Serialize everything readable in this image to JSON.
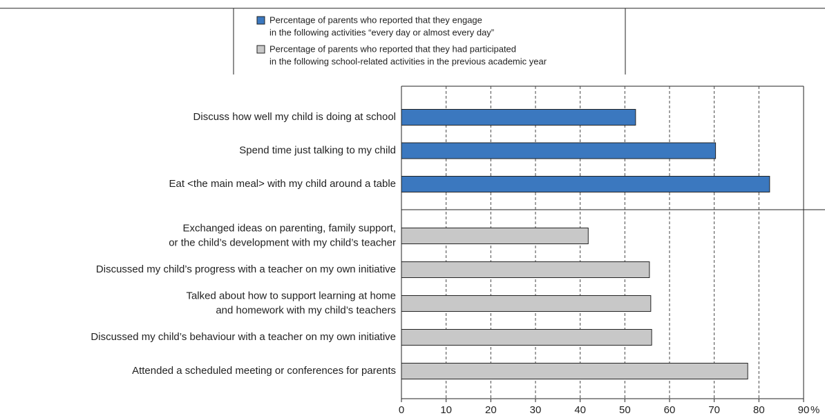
{
  "chart_data": {
    "type": "bar",
    "orientation": "horizontal",
    "categories": [
      [
        "Discuss how well my child is doing at school"
      ],
      [
        "Spend time just talking to my child"
      ],
      [
        "Eat <the main meal> with my child around a table"
      ],
      [
        "Exchanged ideas on parenting, family support,",
        "or the child’s development with my child’s teacher"
      ],
      [
        "Discussed my child’s progress with a teacher on my own initiative"
      ],
      [
        "Talked about how to support learning at home",
        "and homework with my child’s teachers"
      ],
      [
        "Discussed my child’s behaviour with a teacher on my own initiative"
      ],
      [
        "Attended a scheduled meeting or conferences for parents"
      ]
    ],
    "series": [
      {
        "name": [
          "Percentage of parents who reported that they engage",
          "in the following activities “every day or almost every day”"
        ],
        "color": "#3b78bf",
        "values": [
          52.4,
          70.3,
          82.4,
          null,
          null,
          null,
          null,
          null
        ]
      },
      {
        "name": [
          "Percentage of parents who reported that they had participated",
          "in the following school-related activities in the previous academic year"
        ],
        "color": "#c8c8c8",
        "values": [
          null,
          null,
          null,
          41.8,
          55.5,
          55.8,
          56.0,
          77.5
        ]
      }
    ],
    "xlim": [
      0,
      90
    ],
    "xticks": [
      0,
      10,
      20,
      30,
      40,
      50,
      60,
      70,
      80,
      90
    ],
    "x_unit": "%",
    "grid": true
  }
}
